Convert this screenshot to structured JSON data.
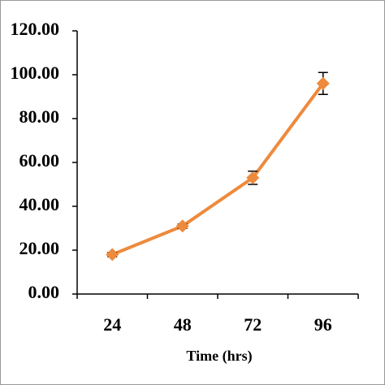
{
  "chart_data": {
    "type": "line",
    "xlabel": "Time (hrs)",
    "categories": [
      "24",
      "48",
      "72",
      "96"
    ],
    "values": [
      18,
      31,
      53,
      96
    ],
    "errors": [
      1,
      1,
      3,
      5
    ],
    "color": "#ee8a3c",
    "ylim": [
      0,
      120
    ],
    "yticks": [
      {
        "value": 0,
        "label": "0.00"
      },
      {
        "value": 20,
        "label": "20.00"
      },
      {
        "value": 40,
        "label": "40.00"
      },
      {
        "value": 60,
        "label": "60.00"
      },
      {
        "value": 80,
        "label": "80.00"
      },
      {
        "value": 100,
        "label": "100.00"
      },
      {
        "value": 120,
        "label": "120.00"
      }
    ],
    "grid": false
  }
}
